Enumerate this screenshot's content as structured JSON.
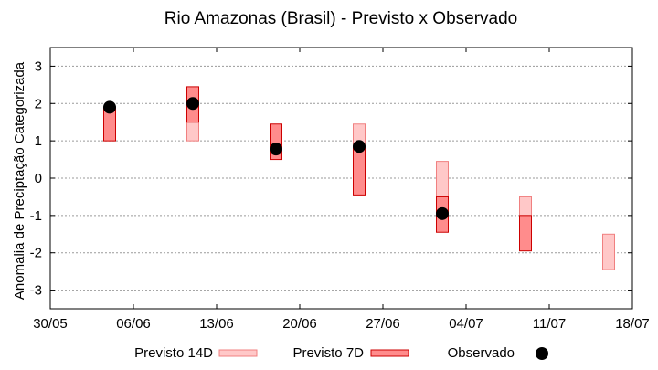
{
  "chart_data": {
    "type": "range-bar with points",
    "title": "Rio Amazonas (Brasil) - Previsto x Observado",
    "ylabel": "Anomalia de Preciptação Categorizada",
    "xlabel": "",
    "ylim": [
      -3.5,
      3.5
    ],
    "yticks": [
      -3,
      -2,
      -1,
      0,
      1,
      2,
      3
    ],
    "y_tick_labels": [
      "-3",
      "-2",
      "-1",
      "0",
      "1",
      "2",
      "3"
    ],
    "x_tick_labels": [
      "30/05",
      "06/06",
      "13/06",
      "20/06",
      "27/06",
      "04/07",
      "11/07",
      "18/07"
    ],
    "x_tick_days": [
      0,
      7,
      14,
      21,
      28,
      35,
      42,
      49
    ],
    "xlim_days": [
      0,
      49
    ],
    "grid": true,
    "legend_position": "bottom",
    "colors": {
      "previsto_14d_fill": "#ffc8c8",
      "previsto_14d_edge": "#f08080",
      "previsto_7d_fill": "#ff8c8c",
      "previsto_7d_edge": "#cc0000",
      "observado": "#000000"
    },
    "series": [
      {
        "name": "Previsto 14D",
        "kind": "range",
        "points": [
          {
            "day": 12,
            "low": 1.0,
            "high": 2.0
          },
          {
            "day": 26,
            "low": 0.8,
            "high": 1.45
          },
          {
            "day": 33,
            "low": -0.55,
            "high": 0.45
          },
          {
            "day": 40,
            "low": -1.0,
            "high": -0.5
          },
          {
            "day": 47,
            "low": -2.45,
            "high": -1.5
          }
        ]
      },
      {
        "name": "Previsto 7D",
        "kind": "range",
        "points": [
          {
            "day": 5,
            "low": 1.0,
            "high": 1.9
          },
          {
            "day": 12,
            "low": 1.5,
            "high": 2.45
          },
          {
            "day": 19,
            "low": 0.5,
            "high": 1.45
          },
          {
            "day": 26,
            "low": -0.45,
            "high": 0.85
          },
          {
            "day": 33,
            "low": -1.45,
            "high": -0.5
          },
          {
            "day": 40,
            "low": -1.95,
            "high": -1.0
          }
        ]
      },
      {
        "name": "Observado",
        "kind": "point",
        "points": [
          {
            "day": 5,
            "value": 1.9
          },
          {
            "day": 12,
            "value": 2.0
          },
          {
            "day": 19,
            "value": 0.78
          },
          {
            "day": 26,
            "value": 0.85
          },
          {
            "day": 33,
            "value": -0.95
          }
        ]
      }
    ],
    "legend": [
      {
        "label": "Previsto 14D",
        "series": "Previsto 14D"
      },
      {
        "label": "Previsto 7D",
        "series": "Previsto 7D"
      },
      {
        "label": "Observado",
        "series": "Observado"
      }
    ]
  }
}
